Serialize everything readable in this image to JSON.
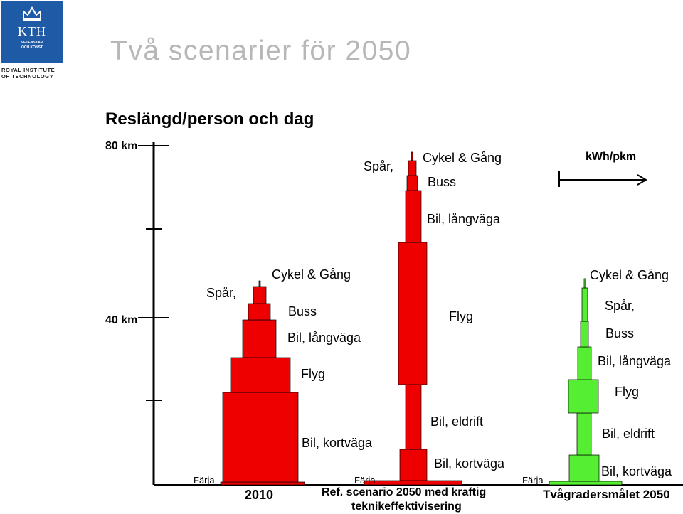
{
  "logo": {
    "text": "KTH",
    "subtext_1": "VETENSKAP",
    "subtext_2": "OCH KONST",
    "institute_1": "ROYAL INSTITUTE",
    "institute_2": "OF TECHNOLOGY"
  },
  "title": "Två scenarier för 2050",
  "subtitle": "Reslängd/person och dag",
  "axis": {
    "tick_80": "80 km",
    "tick_40": "40 km",
    "energy_label": "kWh/pkm"
  },
  "colors": {
    "red": "#ee0000",
    "green": "#55ee33",
    "axis": "#000000"
  },
  "scenarios": [
    {
      "label": "2010",
      "modes": {
        "farja": "Färja",
        "bil_kort": "Bil, kortväga",
        "flyg": "Flyg",
        "bil_lang": "Bil, långväga",
        "buss": "Buss",
        "spar": "Spår,",
        "cykel": "Cykel & Gång"
      }
    },
    {
      "label_line1": "Ref. scenario 2050 med kraftig",
      "label_line2": "teknikeffektivisering",
      "modes": {
        "farja": "Färja",
        "bil_kort": "Bil, kortväga",
        "bil_el": "Bil, eldrift",
        "flyg": "Flyg",
        "bil_lang": "Bil, långväga",
        "buss": "Buss",
        "spar": "Spår,",
        "cykel": "Cykel & Gång"
      }
    },
    {
      "label": "Tvågradersmålet 2050",
      "modes": {
        "farja": "Färja",
        "bil_kort": "Bil, kortväga",
        "bil_el": "Bil, eldrift",
        "flyg": "Flyg",
        "bil_lang": "Bil, långväga",
        "buss": "Buss",
        "spar": "Spår,",
        "cykel": "Cykel & Gång"
      }
    }
  ]
}
